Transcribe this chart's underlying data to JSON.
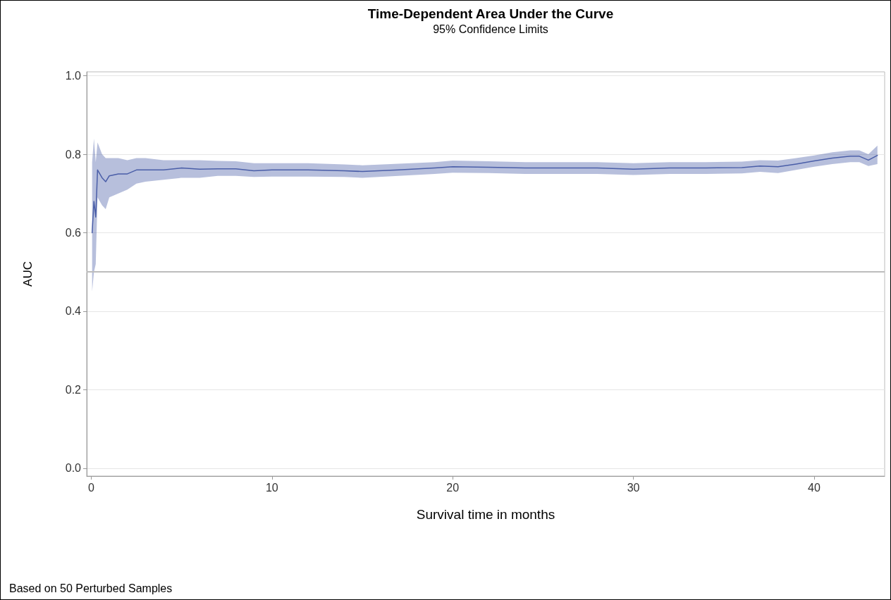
{
  "chart_data": {
    "type": "line",
    "title": "Time-Dependent Area Under the Curve",
    "subtitle": "95% Confidence Limits",
    "xlabel": "Survival time in months",
    "ylabel": "AUC",
    "annotations": [
      "Based on 50 Perturbed Samples"
    ],
    "xlim": [
      -0.25,
      43.9
    ],
    "xticks": [
      0,
      10,
      20,
      30,
      40
    ],
    "ylim": [
      -0.02,
      1.01
    ],
    "yticks": [
      {
        "value": 0,
        "label": "0.0"
      },
      0.2,
      0.4,
      0.6,
      0.8,
      {
        "value": 1,
        "label": "1.0"
      }
    ],
    "grid": "y",
    "marker": "none",
    "line_style": "solid",
    "ref_lines": [
      {
        "axis": "y",
        "value": 0.5,
        "label": null,
        "color": "#bdbdbd"
      }
    ],
    "series": [
      {
        "color": "#4a5ea8",
        "x": [
          0.05,
          0.15,
          0.25,
          0.35,
          0.6,
          0.8,
          1,
          1.5,
          2,
          2.5,
          3,
          4,
          5,
          6,
          7,
          8,
          9,
          10,
          12,
          14,
          15,
          17,
          19,
          20,
          22,
          24,
          26,
          28,
          30,
          32,
          34,
          36,
          37,
          38,
          39,
          40,
          41,
          42,
          42.5,
          43,
          43.5
        ],
        "values": [
          0.6,
          0.68,
          0.64,
          0.76,
          0.74,
          0.73,
          0.745,
          0.75,
          0.75,
          0.76,
          0.76,
          0.76,
          0.765,
          0.762,
          0.763,
          0.763,
          0.758,
          0.76,
          0.76,
          0.758,
          0.756,
          0.76,
          0.765,
          0.768,
          0.767,
          0.765,
          0.765,
          0.765,
          0.762,
          0.765,
          0.765,
          0.766,
          0.77,
          0.768,
          0.775,
          0.783,
          0.79,
          0.795,
          0.795,
          0.785,
          0.797
        ],
        "lower": [
          0.45,
          0.5,
          0.52,
          0.69,
          0.67,
          0.66,
          0.69,
          0.7,
          0.71,
          0.725,
          0.73,
          0.735,
          0.74,
          0.74,
          0.745,
          0.745,
          0.742,
          0.743,
          0.743,
          0.742,
          0.74,
          0.745,
          0.75,
          0.753,
          0.752,
          0.75,
          0.75,
          0.75,
          0.747,
          0.75,
          0.75,
          0.751,
          0.755,
          0.752,
          0.76,
          0.768,
          0.775,
          0.78,
          0.78,
          0.77,
          0.775
        ],
        "upper": [
          0.78,
          0.84,
          0.78,
          0.83,
          0.8,
          0.79,
          0.79,
          0.79,
          0.785,
          0.79,
          0.79,
          0.785,
          0.785,
          0.785,
          0.783,
          0.782,
          0.777,
          0.777,
          0.777,
          0.774,
          0.772,
          0.776,
          0.78,
          0.784,
          0.782,
          0.78,
          0.78,
          0.78,
          0.777,
          0.78,
          0.78,
          0.781,
          0.785,
          0.784,
          0.79,
          0.797,
          0.805,
          0.81,
          0.81,
          0.8,
          0.822
        ]
      }
    ]
  }
}
